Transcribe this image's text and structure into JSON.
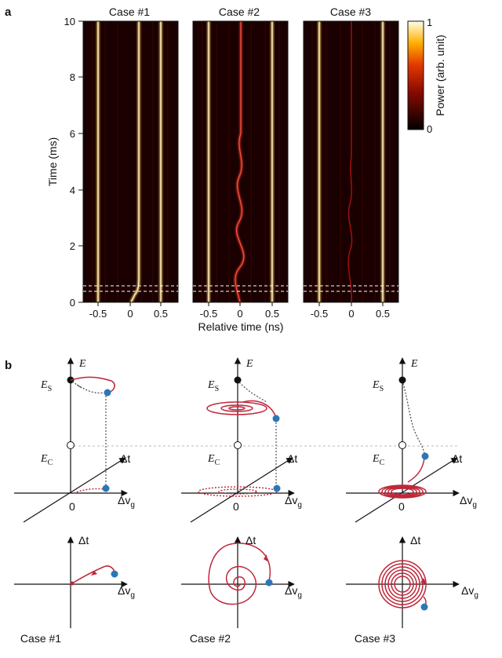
{
  "panel_a": {
    "letter": "a",
    "cases": [
      "Case #1",
      "Case #2",
      "Case #3"
    ],
    "y_label": "Time (ms)",
    "x_label": "Relative time (ns)",
    "y_ticks": [
      "0",
      "2",
      "4",
      "6",
      "8",
      "10"
    ],
    "x_ticks": [
      "-0.5",
      "0",
      "0.5"
    ],
    "colorbar": {
      "label": "Power (arb. unit)",
      "max_label": "1",
      "min_label": "0"
    }
  },
  "panel_b": {
    "letter": "b",
    "E": "E",
    "Es": "E",
    "Es_sub": "S",
    "Ec": "E",
    "Ec_sub": "C",
    "dt": "Δt",
    "dv": "Δv",
    "dv_sub": "g",
    "zero": "0",
    "bottom_labels": [
      "Case #1",
      "Case #2",
      "Case #3"
    ]
  },
  "chart_data": {
    "type": "heatmap",
    "x_range": [
      -0.75,
      0.75
    ],
    "y_range": [
      0,
      10
    ],
    "colorbar_range": [
      0,
      1
    ],
    "traces_ns": [
      -0.5,
      0,
      0.5
    ]
  },
  "colors": {
    "trace": "#c0263a",
    "marker": "#2a77b8",
    "dash": "#555555"
  }
}
